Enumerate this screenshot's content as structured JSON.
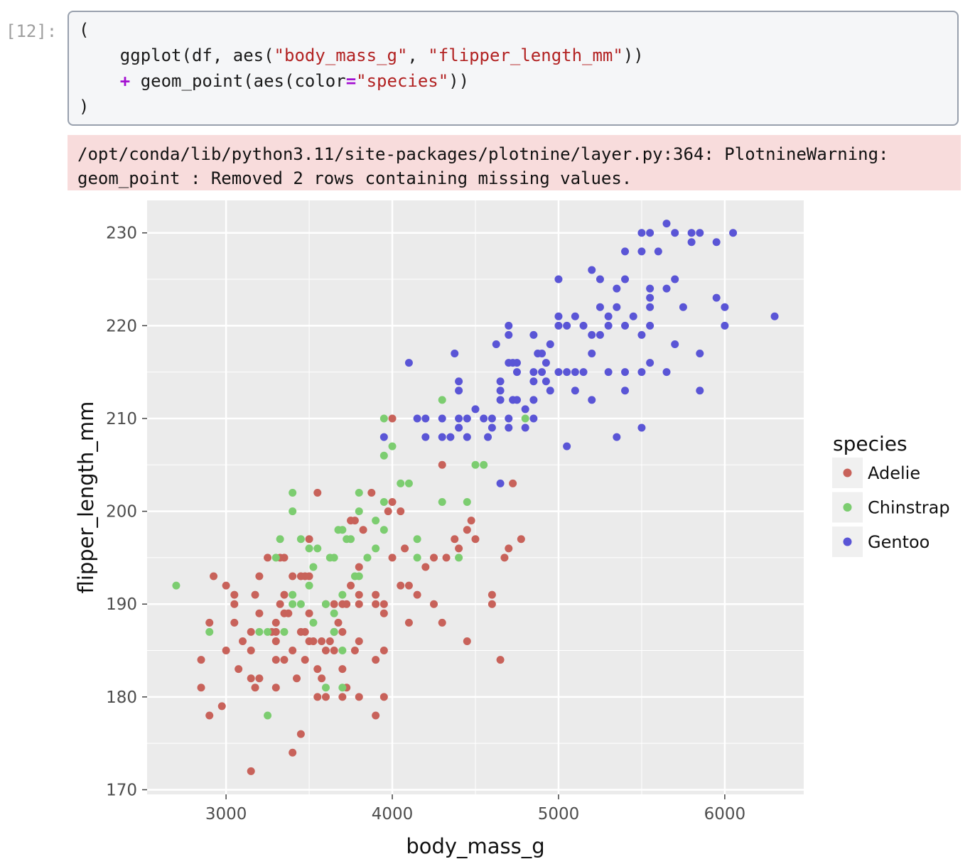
{
  "cell": {
    "prompt": "[12]:",
    "code": [
      [
        {
          "t": "(",
          "c": ""
        }
      ],
      [
        {
          "t": "    ggplot(df, aes(",
          "c": ""
        },
        {
          "t": "\"body_mass_g\"",
          "c": "str"
        },
        {
          "t": ", ",
          "c": ""
        },
        {
          "t": "\"flipper_length_mm\"",
          "c": "str"
        },
        {
          "t": "))",
          "c": ""
        }
      ],
      [
        {
          "t": "    ",
          "c": ""
        },
        {
          "t": "+",
          "c": "op"
        },
        {
          "t": " geom_point(aes(color",
          "c": ""
        },
        {
          "t": "=",
          "c": "op"
        },
        {
          "t": "\"species\"",
          "c": "str"
        },
        {
          "t": "))",
          "c": ""
        }
      ],
      [
        {
          "t": ")",
          "c": ""
        }
      ]
    ]
  },
  "warning": {
    "line1": "/opt/conda/lib/python3.11/site-packages/plotnine/layer.py:364: PlotnineWarning:",
    "line2": "geom_point : Removed 2 rows containing missing values."
  },
  "chart_data": {
    "type": "scatter",
    "xlabel": "body_mass_g",
    "ylabel": "flipper_length_mm",
    "xlim": [
      2525,
      6475
    ],
    "ylim": [
      169.5,
      233.5
    ],
    "xticks": [
      3000,
      4000,
      5000,
      6000
    ],
    "yticks": [
      170,
      180,
      190,
      200,
      210,
      220,
      230
    ],
    "grid": true,
    "panel_color": "#ebebeb",
    "legend": {
      "title": "species",
      "placement": "right"
    },
    "series": [
      {
        "name": "Adelie",
        "color": "#c8625a",
        "points": [
          [
            2850,
            184
          ],
          [
            2850,
            181
          ],
          [
            2900,
            178
          ],
          [
            2900,
            188
          ],
          [
            2925,
            193
          ],
          [
            2975,
            179
          ],
          [
            3000,
            192
          ],
          [
            3000,
            185
          ],
          [
            3050,
            191
          ],
          [
            3050,
            190
          ],
          [
            3050,
            188
          ],
          [
            3075,
            183
          ],
          [
            3100,
            186
          ],
          [
            3150,
            187
          ],
          [
            3150,
            185
          ],
          [
            3150,
            182
          ],
          [
            3150,
            172
          ],
          [
            3175,
            181
          ],
          [
            3175,
            191
          ],
          [
            3200,
            182
          ],
          [
            3200,
            189
          ],
          [
            3200,
            193
          ],
          [
            3250,
            195
          ],
          [
            3275,
            187
          ],
          [
            3300,
            184
          ],
          [
            3300,
            188
          ],
          [
            3300,
            186
          ],
          [
            3300,
            181
          ],
          [
            3300,
            187
          ],
          [
            3325,
            190
          ],
          [
            3325,
            195
          ],
          [
            3350,
            184
          ],
          [
            3350,
            189
          ],
          [
            3350,
            191
          ],
          [
            3350,
            195
          ],
          [
            3375,
            189
          ],
          [
            3400,
            193
          ],
          [
            3400,
            185
          ],
          [
            3400,
            174
          ],
          [
            3425,
            182
          ],
          [
            3450,
            187
          ],
          [
            3450,
            176
          ],
          [
            3450,
            193
          ],
          [
            3475,
            193
          ],
          [
            3475,
            187
          ],
          [
            3475,
            184
          ],
          [
            3500,
            189
          ],
          [
            3500,
            186
          ],
          [
            3500,
            193
          ],
          [
            3500,
            197
          ],
          [
            3525,
            186
          ],
          [
            3550,
            202
          ],
          [
            3550,
            180
          ],
          [
            3550,
            183
          ],
          [
            3575,
            182
          ],
          [
            3575,
            186
          ],
          [
            3600,
            190
          ],
          [
            3600,
            185
          ],
          [
            3600,
            180
          ],
          [
            3625,
            186
          ],
          [
            3650,
            190
          ],
          [
            3650,
            185
          ],
          [
            3650,
            187
          ],
          [
            3675,
            188
          ],
          [
            3700,
            180
          ],
          [
            3700,
            183
          ],
          [
            3700,
            187
          ],
          [
            3700,
            190
          ],
          [
            3725,
            181
          ],
          [
            3725,
            190
          ],
          [
            3750,
            192
          ],
          [
            3750,
            199
          ],
          [
            3775,
            199
          ],
          [
            3775,
            185
          ],
          [
            3800,
            194
          ],
          [
            3800,
            191
          ],
          [
            3800,
            190
          ],
          [
            3800,
            186
          ],
          [
            3800,
            180
          ],
          [
            3825,
            198
          ],
          [
            3875,
            202
          ],
          [
            3900,
            190
          ],
          [
            3900,
            191
          ],
          [
            3900,
            184
          ],
          [
            3900,
            178
          ],
          [
            3950,
            180
          ],
          [
            3950,
            185
          ],
          [
            3950,
            189
          ],
          [
            3950,
            190
          ],
          [
            3975,
            200
          ],
          [
            4000,
            195
          ],
          [
            4000,
            201
          ],
          [
            4000,
            210
          ],
          [
            4050,
            192
          ],
          [
            4050,
            200
          ],
          [
            4075,
            196
          ],
          [
            4100,
            188
          ],
          [
            4100,
            192
          ],
          [
            4150,
            191
          ],
          [
            4200,
            194
          ],
          [
            4250,
            190
          ],
          [
            4250,
            195
          ],
          [
            4300,
            205
          ],
          [
            4300,
            188
          ],
          [
            4325,
            195
          ],
          [
            4375,
            197
          ],
          [
            4400,
            196
          ],
          [
            4450,
            198
          ],
          [
            4450,
            186
          ],
          [
            4475,
            199
          ],
          [
            4500,
            197
          ],
          [
            4600,
            191
          ],
          [
            4600,
            190
          ],
          [
            4650,
            184
          ],
          [
            4675,
            195
          ],
          [
            4700,
            196
          ],
          [
            4725,
            203
          ],
          [
            4775,
            197
          ]
        ]
      },
      {
        "name": "Chinstrap",
        "color": "#7ccd70",
        "points": [
          [
            2700,
            192
          ],
          [
            2900,
            187
          ],
          [
            3200,
            187
          ],
          [
            3250,
            178
          ],
          [
            3250,
            187
          ],
          [
            3300,
            195
          ],
          [
            3325,
            197
          ],
          [
            3350,
            187
          ],
          [
            3400,
            191
          ],
          [
            3400,
            190
          ],
          [
            3400,
            200
          ],
          [
            3400,
            202
          ],
          [
            3450,
            190
          ],
          [
            3450,
            197
          ],
          [
            3500,
            192
          ],
          [
            3500,
            196
          ],
          [
            3525,
            188
          ],
          [
            3525,
            194
          ],
          [
            3550,
            196
          ],
          [
            3600,
            190
          ],
          [
            3600,
            181
          ],
          [
            3625,
            195
          ],
          [
            3650,
            195
          ],
          [
            3650,
            189
          ],
          [
            3650,
            187
          ],
          [
            3675,
            198
          ],
          [
            3700,
            185
          ],
          [
            3700,
            191
          ],
          [
            3700,
            181
          ],
          [
            3700,
            198
          ],
          [
            3725,
            197
          ],
          [
            3750,
            197
          ],
          [
            3775,
            193
          ],
          [
            3800,
            193
          ],
          [
            3800,
            202
          ],
          [
            3800,
            200
          ],
          [
            3850,
            195
          ],
          [
            3900,
            196
          ],
          [
            3900,
            199
          ],
          [
            3950,
            198
          ],
          [
            3950,
            201
          ],
          [
            3950,
            206
          ],
          [
            3950,
            210
          ],
          [
            4000,
            207
          ],
          [
            4050,
            203
          ],
          [
            4100,
            203
          ],
          [
            4150,
            197
          ],
          [
            4150,
            195
          ],
          [
            4300,
            201
          ],
          [
            4300,
            212
          ],
          [
            4400,
            195
          ],
          [
            4450,
            201
          ],
          [
            4500,
            205
          ],
          [
            4550,
            205
          ],
          [
            4800,
            210
          ]
        ]
      },
      {
        "name": "Gentoo",
        "color": "#5a55d6",
        "points": [
          [
            3950,
            208
          ],
          [
            4100,
            216
          ],
          [
            4150,
            210
          ],
          [
            4200,
            210
          ],
          [
            4200,
            208
          ],
          [
            4300,
            208
          ],
          [
            4300,
            210
          ],
          [
            4350,
            208
          ],
          [
            4375,
            217
          ],
          [
            4400,
            214
          ],
          [
            4400,
            213
          ],
          [
            4400,
            209
          ],
          [
            4400,
            210
          ],
          [
            4450,
            210
          ],
          [
            4450,
            208
          ],
          [
            4500,
            211
          ],
          [
            4550,
            210
          ],
          [
            4575,
            208
          ],
          [
            4600,
            209
          ],
          [
            4600,
            210
          ],
          [
            4625,
            218
          ],
          [
            4650,
            212
          ],
          [
            4650,
            214
          ],
          [
            4650,
            213
          ],
          [
            4650,
            203
          ],
          [
            4700,
            220
          ],
          [
            4700,
            219
          ],
          [
            4700,
            216
          ],
          [
            4700,
            210
          ],
          [
            4700,
            209
          ],
          [
            4725,
            216
          ],
          [
            4725,
            212
          ],
          [
            4750,
            215
          ],
          [
            4750,
            216
          ],
          [
            4750,
            212
          ],
          [
            4800,
            211
          ],
          [
            4800,
            209
          ],
          [
            4850,
            219
          ],
          [
            4850,
            215
          ],
          [
            4850,
            214
          ],
          [
            4850,
            210
          ],
          [
            4850,
            212
          ],
          [
            4875,
            217
          ],
          [
            4900,
            217
          ],
          [
            4900,
            215
          ],
          [
            4925,
            216
          ],
          [
            4925,
            214
          ],
          [
            4950,
            218
          ],
          [
            4950,
            213
          ],
          [
            5000,
            225
          ],
          [
            5000,
            221
          ],
          [
            5000,
            220
          ],
          [
            5000,
            215
          ],
          [
            5050,
            207
          ],
          [
            5050,
            215
          ],
          [
            5050,
            220
          ],
          [
            5100,
            221
          ],
          [
            5100,
            215
          ],
          [
            5100,
            213
          ],
          [
            5150,
            215
          ],
          [
            5150,
            220
          ],
          [
            5200,
            226
          ],
          [
            5200,
            219
          ],
          [
            5200,
            217
          ],
          [
            5200,
            212
          ],
          [
            5250,
            225
          ],
          [
            5250,
            222
          ],
          [
            5250,
            219
          ],
          [
            5300,
            215
          ],
          [
            5300,
            220
          ],
          [
            5300,
            221
          ],
          [
            5350,
            224
          ],
          [
            5350,
            222
          ],
          [
            5350,
            208
          ],
          [
            5400,
            225
          ],
          [
            5400,
            228
          ],
          [
            5400,
            220
          ],
          [
            5400,
            215
          ],
          [
            5400,
            213
          ],
          [
            5450,
            221
          ],
          [
            5500,
            230
          ],
          [
            5500,
            228
          ],
          [
            5500,
            219
          ],
          [
            5500,
            215
          ],
          [
            5500,
            209
          ],
          [
            5550,
            230
          ],
          [
            5550,
            224
          ],
          [
            5550,
            223
          ],
          [
            5550,
            222
          ],
          [
            5550,
            220
          ],
          [
            5550,
            216
          ],
          [
            5600,
            228
          ],
          [
            5650,
            231
          ],
          [
            5650,
            224
          ],
          [
            5650,
            215
          ],
          [
            5700,
            230
          ],
          [
            5700,
            225
          ],
          [
            5700,
            218
          ],
          [
            5750,
            222
          ],
          [
            5800,
            230
          ],
          [
            5800,
            229
          ],
          [
            5850,
            230
          ],
          [
            5850,
            217
          ],
          [
            5850,
            213
          ],
          [
            5950,
            229
          ],
          [
            5950,
            223
          ],
          [
            6000,
            222
          ],
          [
            6000,
            220
          ],
          [
            6050,
            230
          ],
          [
            6300,
            221
          ]
        ]
      }
    ]
  }
}
